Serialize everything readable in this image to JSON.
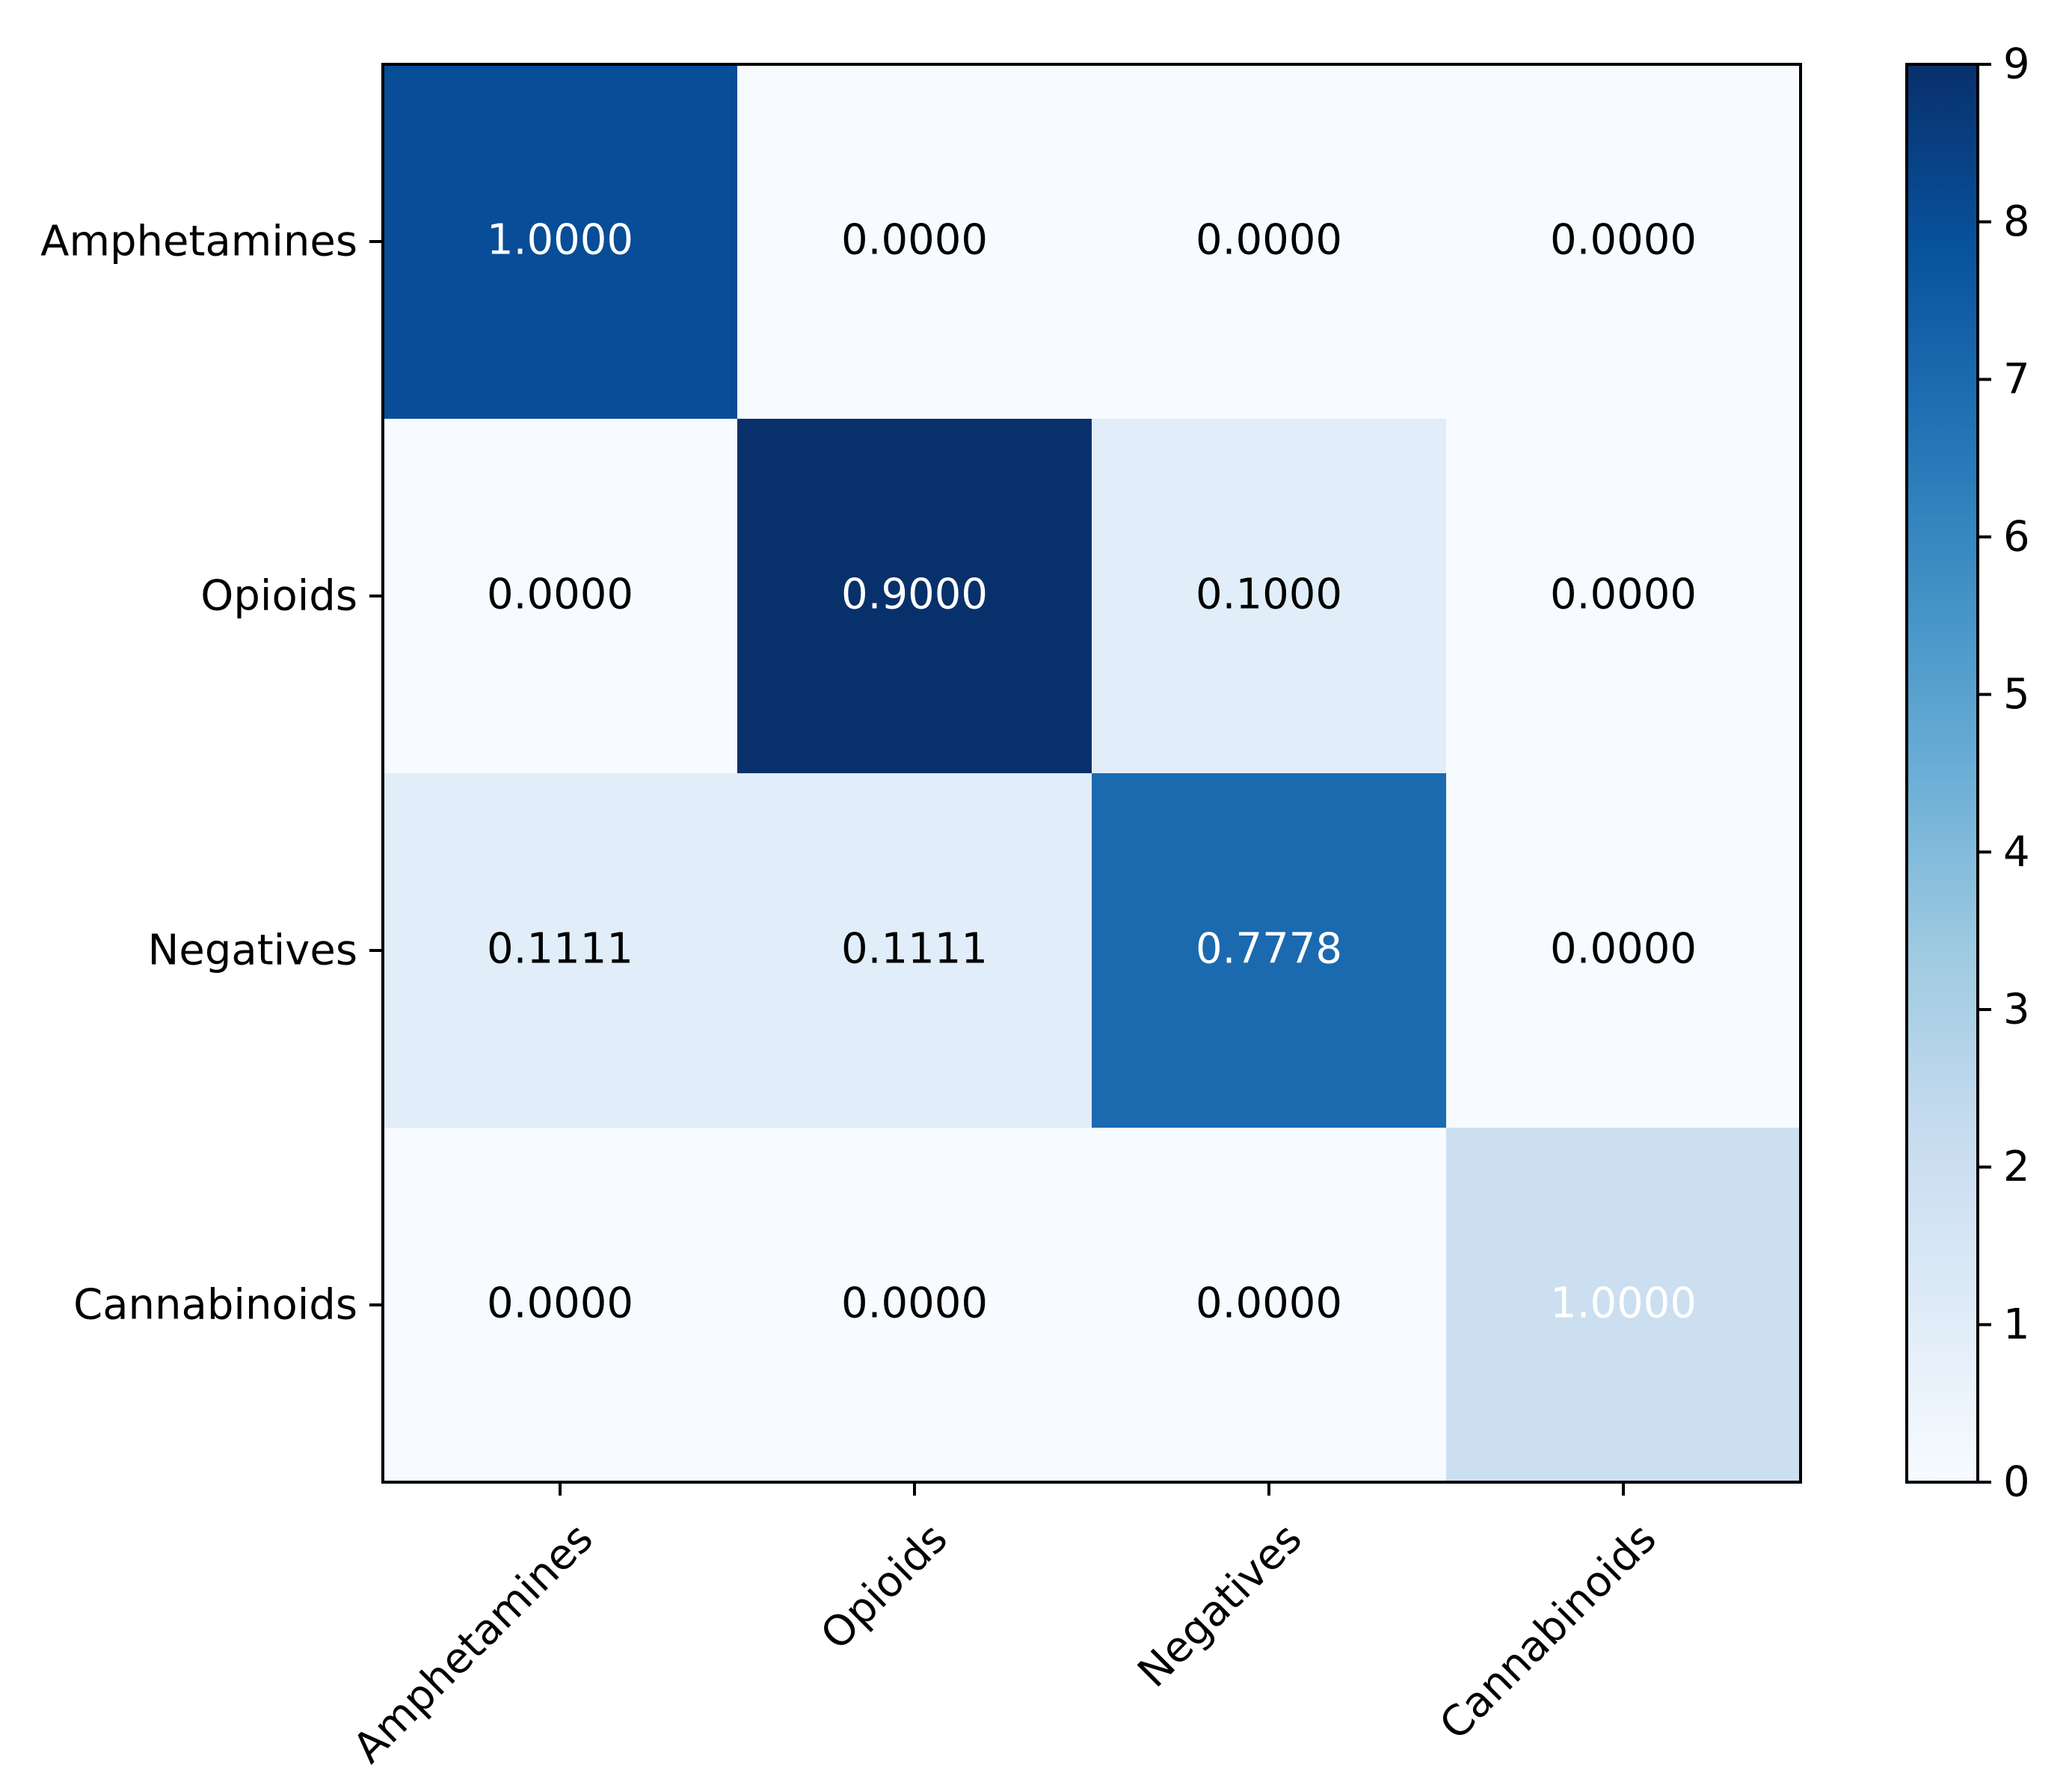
{
  "chart_data": {
    "type": "heatmap",
    "title": "",
    "xlabel": "",
    "ylabel": "",
    "rows": [
      "Amphetamines",
      "Opioids",
      "Negatives",
      "Cannabinoids"
    ],
    "columns": [
      "Amphetamines",
      "Opioids",
      "Negatives",
      "Cannabinoids"
    ],
    "cell_labels": [
      [
        "1.0000",
        "0.0000",
        "0.0000",
        "0.0000"
      ],
      [
        "0.0000",
        "0.9000",
        "0.1000",
        "0.0000"
      ],
      [
        "0.1111",
        "0.1111",
        "0.7778",
        "0.0000"
      ],
      [
        "0.0000",
        "0.0000",
        "0.0000",
        "1.0000"
      ]
    ],
    "color_values": [
      [
        8,
        0,
        0,
        0
      ],
      [
        0,
        9,
        1,
        0
      ],
      [
        1,
        1,
        7,
        0
      ],
      [
        0,
        0,
        0,
        2
      ]
    ],
    "colorbar": {
      "range": [
        0,
        9
      ],
      "ticks": [
        "0",
        "1",
        "2",
        "3",
        "4",
        "5",
        "6",
        "7",
        "8",
        "9"
      ]
    },
    "colormap": "Blues",
    "grid": false
  }
}
